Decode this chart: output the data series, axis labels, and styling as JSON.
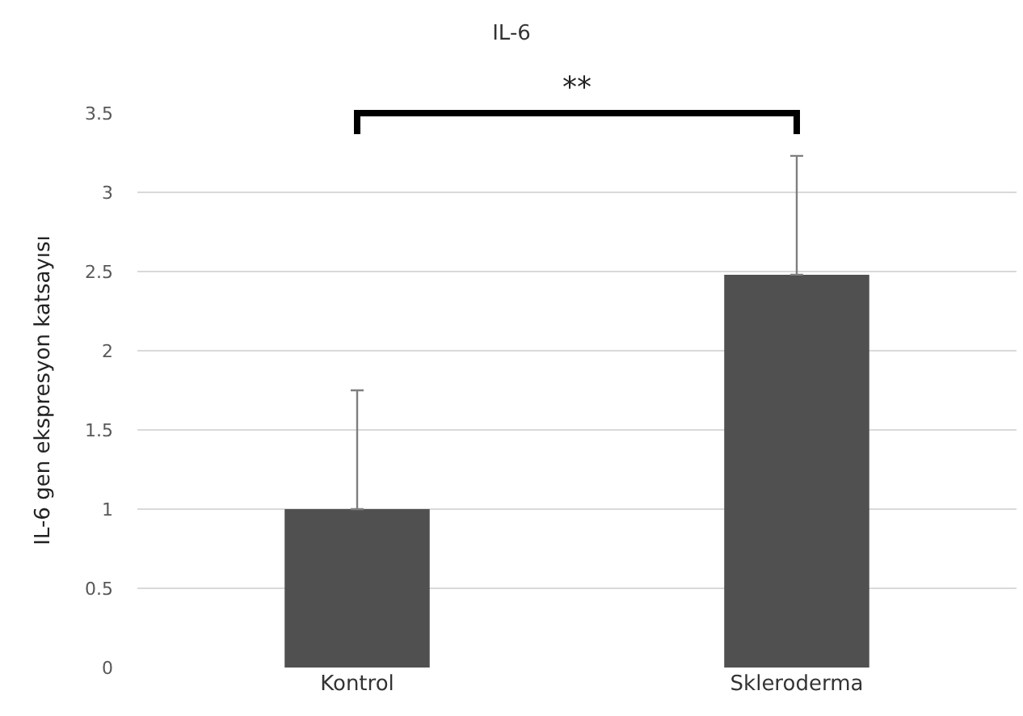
{
  "chart_data": {
    "type": "bar",
    "title": "IL-6",
    "ylabel": "IL-6 gen ekspresyon katsayısı",
    "categories": [
      "Kontrol",
      "Skleroderma"
    ],
    "values": [
      1,
      2.48
    ],
    "color": "#505050",
    "errors": [
      [
        1,
        1.75
      ],
      [
        2.48,
        3.23
      ]
    ],
    "ylim": [
      0,
      3.5
    ],
    "yticks": [
      0,
      0.5,
      1,
      1.5,
      2,
      2.5,
      3,
      3.5
    ],
    "grid": "y",
    "annotations": [
      "**"
    ]
  }
}
